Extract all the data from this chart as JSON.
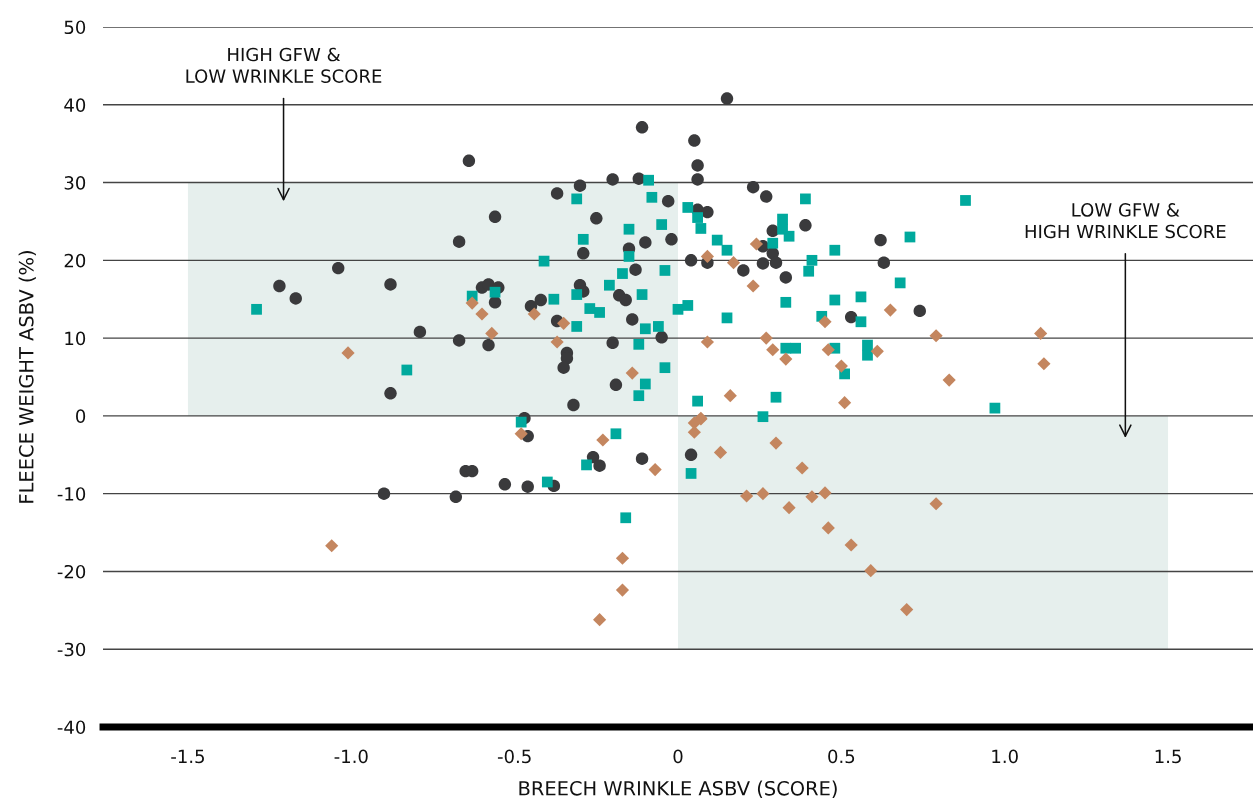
{
  "chart_data": {
    "type": "scatter",
    "xlabel": "BREECH WRINKLE ASBV (SCORE)",
    "ylabel": "FLEECE WEIGHT ASBV (%)",
    "xlim": [
      -1.76,
      1.76
    ],
    "ylim": [
      -40,
      50
    ],
    "xticks": [
      {
        "value": -1.5,
        "label": "-1.5"
      },
      {
        "value": -1.0,
        "label": "-1.0"
      },
      {
        "value": -0.5,
        "label": "-0.5"
      },
      {
        "value": 0,
        "label": "0"
      },
      {
        "value": 0.5,
        "label": "0.5"
      },
      {
        "value": 1.0,
        "label": "1.0"
      },
      {
        "value": 1.5,
        "label": "1.5"
      }
    ],
    "yticks": [
      -40,
      -30,
      -20,
      -10,
      0,
      10,
      20,
      30,
      40,
      50
    ],
    "grid": "y",
    "annotations": [
      "HIGH GFW &\nLOW WRINKLE SCORE",
      "LOW GFW &\nHIGH WRINKLE SCORE"
    ],
    "series": [
      {
        "type": "area",
        "color": "#e6efed",
        "x": [
          -1.5,
          -1.5,
          0,
          0
        ],
        "values": [
          0,
          30,
          30,
          0
        ]
      },
      {
        "type": "area",
        "color": "#e6efed",
        "x": [
          0,
          0,
          1.5,
          1.5
        ],
        "values": [
          -30,
          0,
          0,
          -30
        ]
      },
      {
        "color": "#3a3a3c",
        "marker": "circle",
        "x": [
          -0.11,
          -0.64,
          -0.3,
          -0.2,
          -0.12,
          -0.37,
          -0.03,
          -0.56,
          -0.25,
          -0.67,
          -0.15,
          -0.1,
          -0.02,
          -0.29,
          -0.13,
          -1.04,
          -1.22,
          -1.17,
          -0.88,
          -0.6,
          -0.58,
          -0.55,
          -0.56,
          -0.45,
          -0.42,
          -0.3,
          -0.29,
          -0.18,
          -0.16,
          -0.37,
          -0.14,
          -0.79,
          -0.67,
          -0.58,
          -0.2,
          -0.05,
          -0.34,
          -0.34,
          -0.35,
          -0.19,
          -0.88,
          -0.32,
          -0.47,
          -0.46,
          -0.65,
          -0.63,
          -0.53,
          -0.46,
          -0.38,
          -0.9,
          -0.68,
          -0.26,
          -0.24,
          -0.11,
          0.04,
          0.15,
          0.05,
          0.06,
          0.06,
          0.23,
          0.27,
          0.06,
          0.09,
          0.39,
          0.29,
          0.26,
          0.29,
          0.04,
          0.09,
          0.26,
          0.3,
          0.2,
          0.33,
          0.62,
          0.63,
          0.53,
          0.74
        ],
        "values": [
          37.1,
          32.8,
          29.6,
          30.4,
          30.5,
          28.6,
          27.6,
          25.6,
          25.4,
          22.4,
          21.5,
          22.3,
          22.7,
          20.9,
          18.8,
          19.0,
          16.7,
          15.1,
          16.9,
          16.5,
          16.9,
          16.5,
          14.6,
          14.1,
          14.9,
          16.8,
          16.0,
          15.5,
          14.9,
          12.2,
          12.4,
          10.8,
          9.7,
          9.1,
          9.4,
          10.1,
          8.1,
          7.4,
          6.2,
          4.0,
          2.9,
          1.4,
          -0.3,
          -2.6,
          -7.1,
          -7.1,
          -8.8,
          -9.1,
          -9.0,
          -10.0,
          -10.4,
          -5.3,
          -6.4,
          -5.5,
          -5.0,
          40.8,
          35.4,
          32.2,
          30.4,
          29.4,
          28.2,
          26.5,
          26.2,
          24.5,
          23.8,
          21.8,
          20.9,
          20.0,
          19.7,
          19.6,
          19.7,
          18.7,
          17.8,
          22.6,
          19.7,
          12.7,
          13.5
        ]
      },
      {
        "color": "#00a99d",
        "marker": "square",
        "x": [
          -0.09,
          -0.31,
          -0.08,
          -0.05,
          -0.15,
          -0.29,
          -0.15,
          -0.17,
          -0.41,
          -0.04,
          -0.21,
          -0.63,
          -0.56,
          -0.31,
          -0.11,
          -0.38,
          -1.29,
          -0.27,
          -0.24,
          0.0,
          -0.31,
          -0.06,
          -0.1,
          -0.12,
          -0.04,
          -0.83,
          -0.1,
          -0.12,
          0.03,
          0.06,
          0.07,
          0.12,
          0.15,
          0.39,
          0.32,
          0.32,
          0.34,
          0.29,
          0.48,
          0.41,
          0.4,
          0.68,
          0.71,
          0.88,
          0.03,
          0.15,
          0.33,
          0.48,
          0.56,
          0.44,
          0.56,
          0.33,
          0.36,
          0.48,
          0.58,
          0.58,
          0.51,
          0.06,
          0.3,
          0.97,
          0.26,
          -0.48,
          -0.28,
          -0.4,
          -0.19,
          -0.16,
          0.04
        ],
        "values": [
          30.3,
          27.9,
          28.1,
          24.6,
          24.0,
          22.7,
          20.5,
          18.3,
          19.9,
          18.7,
          16.8,
          15.4,
          15.9,
          15.6,
          15.6,
          15.0,
          13.7,
          13.8,
          13.3,
          13.7,
          11.5,
          11.5,
          11.2,
          9.2,
          6.2,
          5.9,
          4.1,
          2.6,
          26.8,
          25.5,
          24.1,
          22.6,
          21.3,
          27.9,
          25.3,
          24.0,
          23.1,
          22.2,
          21.3,
          20.0,
          18.6,
          17.1,
          23.0,
          27.7,
          14.2,
          12.6,
          14.6,
          14.9,
          15.3,
          12.8,
          12.1,
          8.7,
          8.7,
          8.7,
          9.1,
          7.8,
          5.4,
          1.9,
          2.4,
          1.0,
          -0.1,
          -0.8,
          -6.3,
          -8.5,
          -2.3,
          -13.1,
          -7.4
        ]
      },
      {
        "color": "#c4865f",
        "marker": "diamond",
        "x": [
          -1.01,
          -0.63,
          -0.6,
          -0.57,
          -0.44,
          -0.35,
          -0.37,
          -0.14,
          0.24,
          0.09,
          0.17,
          0.23,
          0.65,
          0.79,
          1.11,
          1.12,
          0.83,
          0.09,
          0.27,
          0.29,
          0.33,
          0.45,
          0.46,
          0.61,
          0.5,
          0.51,
          0.16,
          0.07,
          -1.06,
          -0.48,
          -0.23,
          -0.07,
          -0.17,
          -0.17,
          -0.24,
          0.07,
          0.05,
          0.05,
          0.13,
          0.3,
          0.38,
          0.21,
          0.26,
          0.34,
          0.41,
          0.45,
          0.46,
          0.53,
          0.59,
          0.7,
          0.79
        ],
        "values": [
          8.1,
          14.5,
          13.1,
          10.6,
          13.1,
          11.9,
          9.5,
          5.5,
          22.1,
          20.5,
          19.7,
          16.7,
          13.6,
          10.3,
          10.6,
          6.7,
          4.6,
          9.5,
          10.0,
          8.5,
          7.3,
          12.1,
          8.5,
          8.3,
          6.4,
          1.7,
          2.6,
          -0.3,
          -16.7,
          -2.3,
          -3.1,
          -6.9,
          -18.3,
          -22.4,
          -26.2,
          -0.4,
          -0.9,
          -2.1,
          -4.7,
          -3.5,
          -6.7,
          -10.3,
          -10.0,
          -11.8,
          -10.4,
          -9.9,
          -14.4,
          -16.6,
          -19.9,
          -24.9,
          -11.3
        ]
      }
    ]
  }
}
